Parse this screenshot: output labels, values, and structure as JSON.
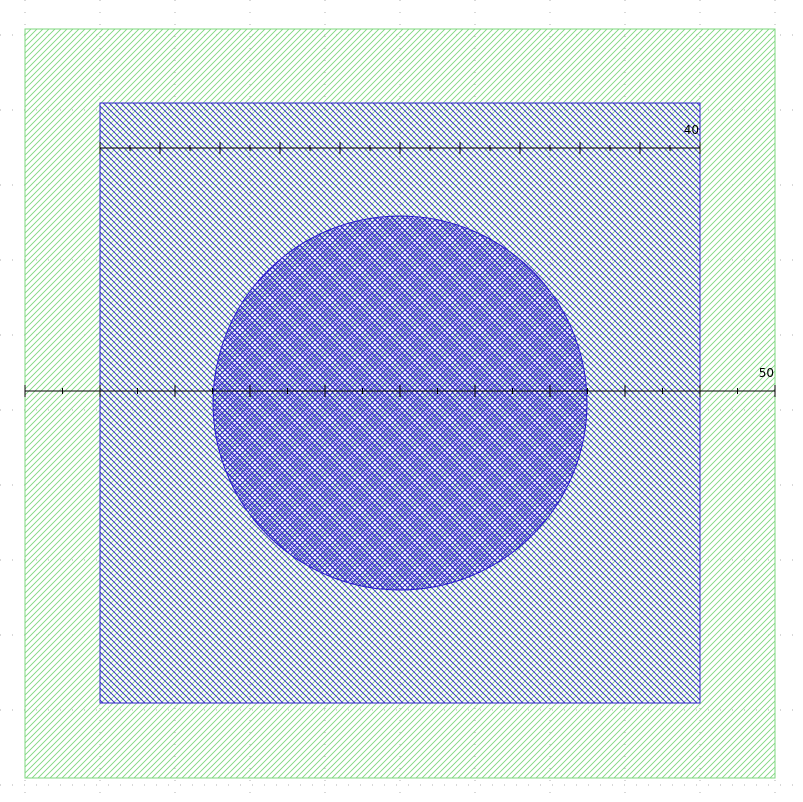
{
  "colors": {
    "background": "#ffffff",
    "grid_dots": "#b0b0b0",
    "outer_region": "#7fd77f",
    "inner_region": "#2c21c9",
    "circle_region": "#2c21c9",
    "axis": "#000000"
  },
  "grid": {
    "on": true,
    "style": "dotted"
  },
  "shapes": [
    {
      "kind": "rectangle",
      "name": "outer-region",
      "fill": "diagonal-hatch",
      "color": "outer_region"
    },
    {
      "kind": "rectangle",
      "name": "inner-region",
      "fill": "diagonal-hatch",
      "color": "inner_region"
    },
    {
      "kind": "circle",
      "name": "circle-region",
      "fill": "cross-hatch",
      "color": "circle_region"
    }
  ],
  "axes": {
    "horizontal": {
      "end_label": "50",
      "major_ticks": 11,
      "minor_ticks_per_major": 2
    },
    "top": {
      "end_label": "40",
      "major_ticks": 11,
      "minor_ticks_per_major": 2
    }
  }
}
